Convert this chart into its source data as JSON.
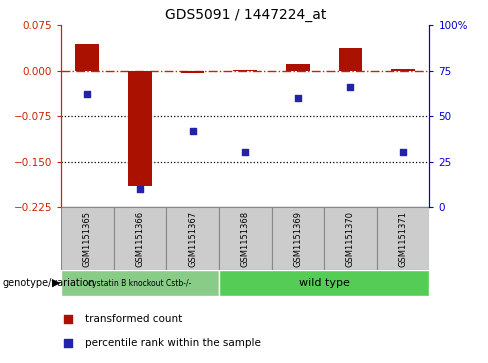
{
  "title": "GDS5091 / 1447224_at",
  "samples": [
    "GSM1151365",
    "GSM1151366",
    "GSM1151367",
    "GSM1151368",
    "GSM1151369",
    "GSM1151370",
    "GSM1151371"
  ],
  "bar_values": [
    0.045,
    -0.19,
    -0.003,
    0.002,
    0.012,
    0.038,
    0.003
  ],
  "dot_percentiles": [
    62,
    10,
    42,
    30,
    60,
    66,
    30
  ],
  "ylim": [
    -0.225,
    0.075
  ],
  "yticks_left": [
    0.075,
    0.0,
    -0.075,
    -0.15,
    -0.225
  ],
  "yticks_right": [
    100,
    75,
    50,
    25,
    0
  ],
  "left_axis_color": "#cc2200",
  "right_axis_color": "#0000cc",
  "bar_color": "#aa1100",
  "dot_color": "#2222aa",
  "hline_y": 0.0,
  "hline_color": "#cc2200",
  "dotted_lines": [
    -0.075,
    -0.15
  ],
  "group1_indices": [
    0,
    1,
    2
  ],
  "group2_indices": [
    3,
    4,
    5,
    6
  ],
  "group1_label": "cystatin B knockout Cstb-/-",
  "group2_label": "wild type",
  "group1_color": "#88cc88",
  "group2_color": "#55cc55",
  "genotype_label": "genotype/variation",
  "legend_bar_label": "transformed count",
  "legend_dot_label": "percentile rank within the sample",
  "bar_width": 0.45,
  "label_box_color": "#cccccc",
  "label_box_edge": "#888888"
}
